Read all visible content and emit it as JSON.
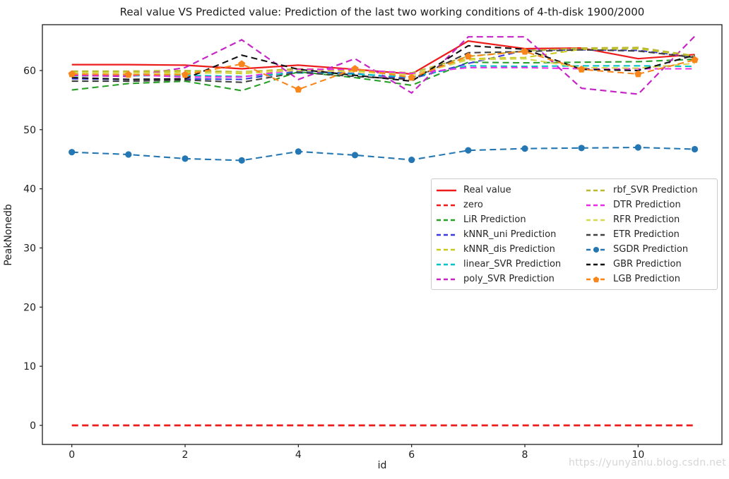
{
  "watermark": "https://yunyaniu.blog.csdn.net",
  "chart_data": {
    "type": "line",
    "title": "Real value VS Predicted value: Prediction of the last two working conditions of 4-th-disk 1900/2000",
    "xlabel": "id",
    "ylabel": "PeakNonedb",
    "xlim": [
      -0.52,
      11.48
    ],
    "ylim": [
      -3.22,
      67.75
    ],
    "xticks": [
      0,
      2,
      4,
      6,
      8,
      10
    ],
    "yticks": [
      0,
      10,
      20,
      30,
      40,
      50,
      60
    ],
    "grid": false,
    "legend_position": "center-right",
    "legend_columns": 2,
    "x": [
      0,
      1,
      2,
      3,
      4,
      5,
      6,
      7,
      8,
      9,
      10,
      11
    ],
    "series": [
      {
        "name": "Real value",
        "color": "#ed1c1c",
        "linestyle": "solid",
        "marker": null,
        "lw": 2.2,
        "values": [
          61.0,
          61.0,
          60.9,
          60.3,
          60.9,
          60.2,
          59.4,
          65.0,
          63.7,
          63.8,
          62.0,
          62.7
        ]
      },
      {
        "name": "zero",
        "color": "#ed1c1c",
        "linestyle": "dashed",
        "marker": null,
        "lw": 2.8,
        "values": [
          0,
          0,
          0,
          0,
          0,
          0,
          0,
          0,
          0,
          0,
          0,
          0
        ]
      },
      {
        "name": "LiR Prediction",
        "color": "#28a028",
        "linestyle": "dashed",
        "marker": null,
        "lw": 2.1,
        "values": [
          56.7,
          57.8,
          58.2,
          56.6,
          59.8,
          58.8,
          57.5,
          61.4,
          61.3,
          61.4,
          61.5,
          61.9
        ]
      },
      {
        "name": "kNNR_uni Prediction",
        "color": "#3b3bd9",
        "linestyle": "dashed",
        "marker": null,
        "lw": 2.1,
        "values": [
          58.6,
          58.5,
          58.6,
          58.5,
          59.9,
          59.5,
          58.6,
          61.2,
          63.4,
          63.5,
          63.4,
          62.3
        ]
      },
      {
        "name": "kNNR_dis Prediction",
        "color": "#c9c920",
        "linestyle": "dashed",
        "marker": null,
        "lw": 2.1,
        "values": [
          59.8,
          59.7,
          59.8,
          59.5,
          60.1,
          59.9,
          59.3,
          62.0,
          62.2,
          63.6,
          63.7,
          62.4
        ]
      },
      {
        "name": "linear_SVR Prediction",
        "color": "#00c2c7",
        "linestyle": "dashed",
        "marker": null,
        "lw": 2.1,
        "values": [
          59.1,
          59.1,
          59.2,
          59.0,
          59.6,
          59.4,
          58.9,
          60.8,
          60.7,
          60.8,
          60.8,
          60.7
        ]
      },
      {
        "name": "poly_SVR Prediction",
        "color": "#c625c6",
        "linestyle": "dashed",
        "marker": null,
        "lw": 2.2,
        "values": [
          59.2,
          59.0,
          60.5,
          65.2,
          58.5,
          62.0,
          56.2,
          65.7,
          65.7,
          57.0,
          56.0,
          65.8
        ]
      },
      {
        "name": "rbf_SVR Prediction",
        "color": "#b9b931",
        "linestyle": "dashed",
        "marker": null,
        "lw": 2.1,
        "values": [
          59.9,
          59.9,
          60.0,
          59.8,
          60.3,
          60.1,
          59.6,
          62.4,
          63.3,
          63.8,
          63.9,
          62.5
        ]
      },
      {
        "name": "DTR Prediction",
        "color": "#e52ee5",
        "linestyle": "dashed",
        "marker": null,
        "lw": 2.1,
        "values": [
          59.3,
          59.3,
          58.9,
          58.9,
          60.2,
          60.2,
          59.5,
          60.5,
          60.5,
          60.3,
          60.3,
          60.3
        ]
      },
      {
        "name": "RFR Prediction",
        "color": "#d8d855",
        "linestyle": "dashed",
        "marker": null,
        "lw": 2.1,
        "values": [
          59.6,
          59.6,
          59.5,
          59.7,
          60.0,
          59.8,
          59.2,
          61.8,
          62.0,
          60.5,
          60.4,
          61.2
        ]
      },
      {
        "name": "ETR Prediction",
        "color": "#404040",
        "linestyle": "dashed",
        "marker": null,
        "lw": 2.1,
        "values": [
          58.2,
          58.2,
          58.4,
          58.0,
          59.7,
          59.0,
          58.5,
          63.0,
          63.2,
          63.5,
          63.3,
          62.2
        ]
      },
      {
        "name": "SGDR Prediction",
        "color": "#2477b2",
        "linestyle": "dashed",
        "marker": "circle",
        "lw": 2.1,
        "values": [
          46.2,
          45.8,
          45.1,
          44.8,
          46.3,
          45.7,
          44.9,
          46.5,
          46.8,
          46.9,
          47.0,
          46.7
        ]
      },
      {
        "name": "GBR Prediction",
        "color": "#111111",
        "linestyle": "dashed",
        "marker": null,
        "lw": 2.1,
        "values": [
          58.8,
          58.5,
          58.6,
          62.6,
          60.2,
          59.2,
          58.2,
          64.2,
          63.6,
          60.2,
          60.0,
          62.6
        ]
      },
      {
        "name": "LGB Prediction",
        "color": "#f8861b",
        "linestyle": "dashed",
        "marker": "pentagon",
        "lw": 2.1,
        "values": [
          59.4,
          59.3,
          59.3,
          61.1,
          56.8,
          60.3,
          58.8,
          62.4,
          63.2,
          60.2,
          59.4,
          61.8
        ]
      }
    ]
  }
}
